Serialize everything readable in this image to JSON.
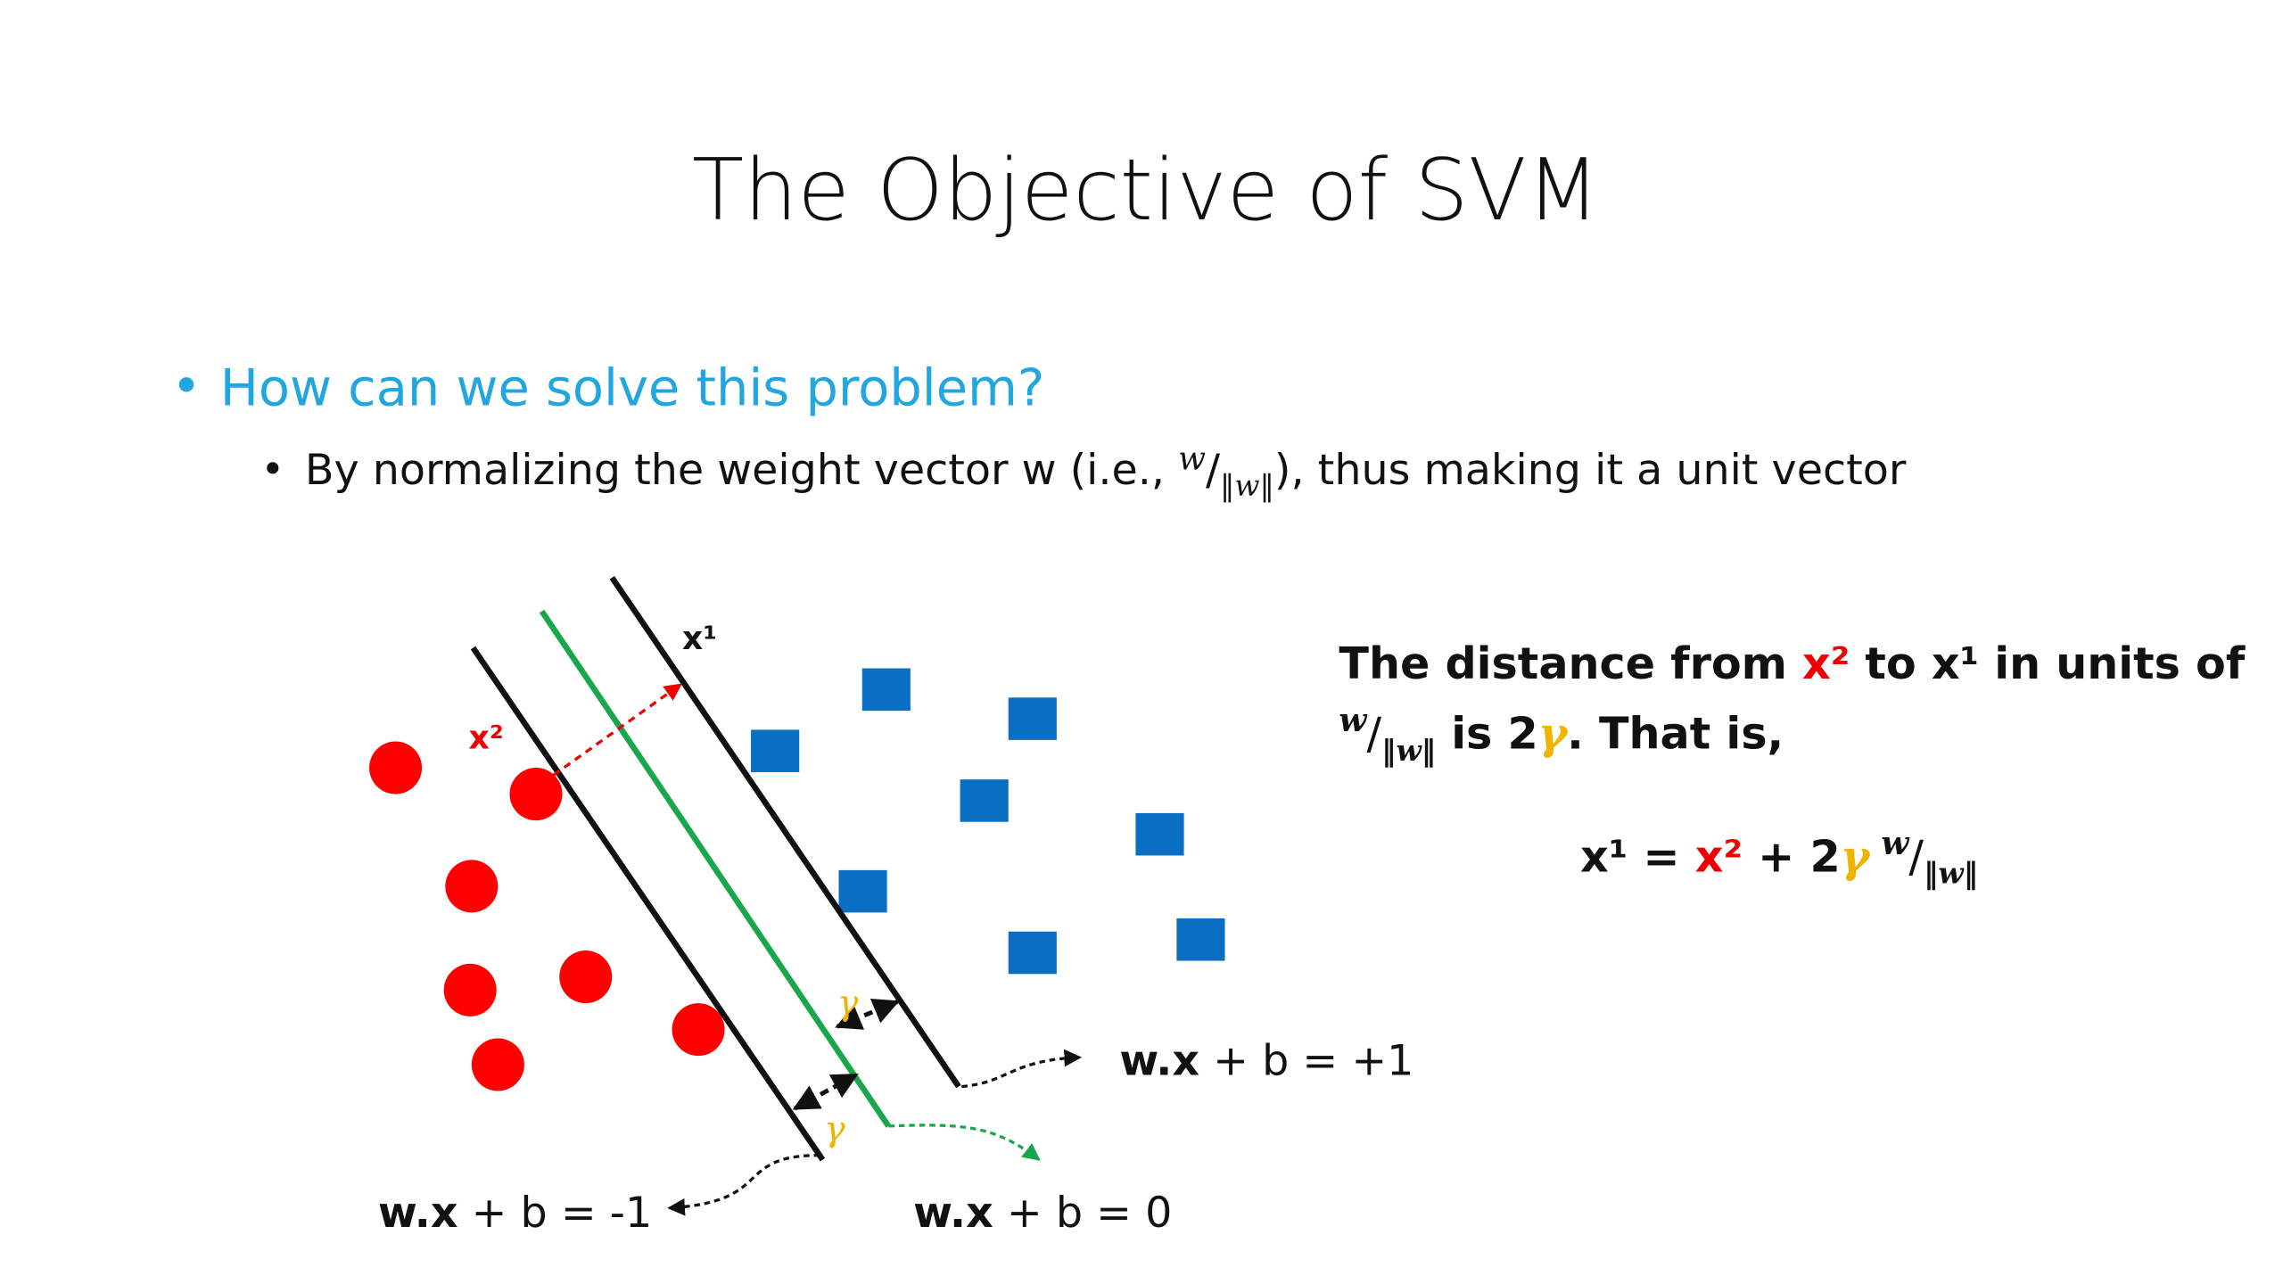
{
  "title": "The Objective of SVM",
  "bullets": {
    "level1": "How can we solve this problem?",
    "level2": [
      "By normalizing the weight vector w (i.e., ",
      "w",
      "/",
      "‖w‖",
      "), thus making it a unit vector"
    ]
  },
  "diagram": {
    "x1_label": "x¹",
    "x2_label": "x²",
    "gamma_upper": "γ",
    "gamma_lower": "γ",
    "plus_margin": [
      "w.x",
      " + b = +1"
    ],
    "minus_margin": [
      "w.x",
      " + b = -1"
    ],
    "hyperplane": [
      "w.x",
      " + b = 0"
    ]
  },
  "explanation": {
    "line1": [
      "The distance from ",
      "x²",
      " to x¹ in units of"
    ],
    "line2": [
      "w",
      "/",
      "‖w‖",
      " is 2",
      "γ",
      ". That is,"
    ],
    "equation": [
      "x¹ = ",
      "x²",
      " + 2",
      "γ",
      "w",
      "/",
      "‖w‖"
    ]
  }
}
